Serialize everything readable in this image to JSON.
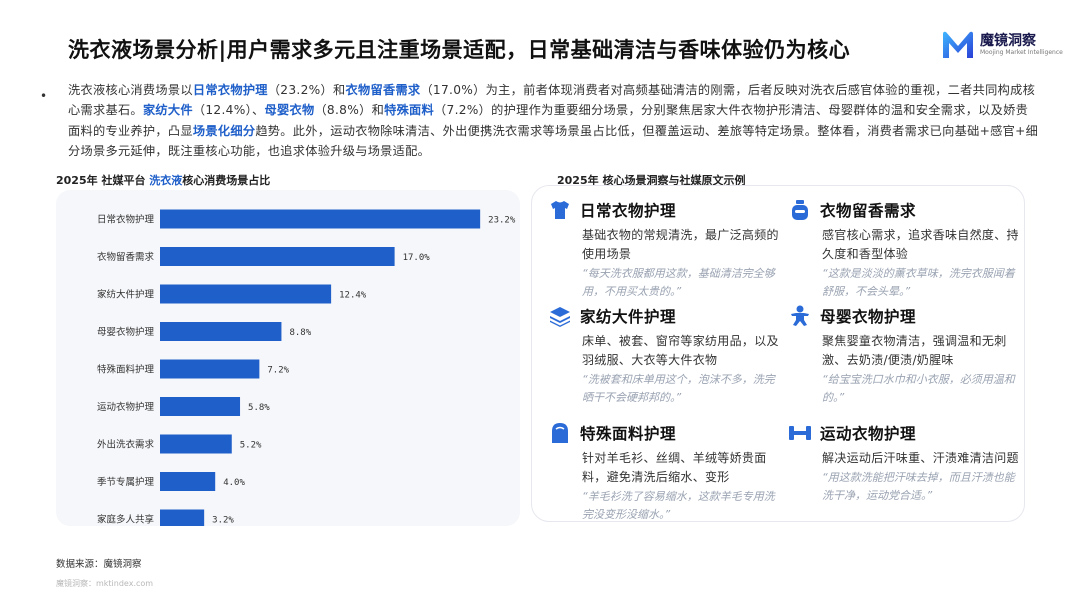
{
  "header": {
    "title": "洗衣液场景分析|用户需求多元且注重场景适配，日常基础清洁与香味体验仍为核心",
    "logo_cn": "魔镜洞察",
    "logo_en": "Moojing Market Intelligence"
  },
  "intro": {
    "bullet": "•",
    "parts": [
      {
        "t": "洗衣液核心消费场景以",
        "hl": false
      },
      {
        "t": "日常衣物护理",
        "hl": true
      },
      {
        "t": "（23.2%）和",
        "hl": false
      },
      {
        "t": "衣物留香需求",
        "hl": true
      },
      {
        "t": "（17.0%）为主，前者体现消费者对高频基础清洁的刚需，后者反映对洗衣后感官体验的重视，二者共同构成核心需求基石。",
        "hl": false
      },
      {
        "t": "家纺大件",
        "hl": true
      },
      {
        "t": "（12.4%）、",
        "hl": false
      },
      {
        "t": "母婴衣物",
        "hl": true
      },
      {
        "t": "（8.8%）和",
        "hl": false
      },
      {
        "t": "特殊面料",
        "hl": true
      },
      {
        "t": "（7.2%）的护理作为重要细分场景，分别聚焦居家大件衣物护形清洁、母婴群体的温和安全需求，以及娇贵面料的专业养护，凸显",
        "hl": false
      },
      {
        "t": "场景化细分",
        "hl": true
      },
      {
        "t": "趋势。此外，运动衣物除味清洁、外出便携洗衣需求等场景虽占比低，但覆盖运动、差旅等特定场景。整体看，消费者需求已向基础+感官+细分场景多元延伸，既注重核心功能，也追求体验升级与场景适配。",
        "hl": false
      }
    ]
  },
  "chart_title": {
    "prefix": "2025年 社媒平台 ",
    "highlight": "洗衣液",
    "suffix": "核心消费场景占比"
  },
  "chart_data": {
    "type": "bar",
    "orientation": "horizontal",
    "categories": [
      "日常衣物护理",
      "衣物留香需求",
      "家纺大件护理",
      "母婴衣物护理",
      "特殊面料护理",
      "运动衣物护理",
      "外出洗衣需求",
      "季节专属护理",
      "家庭多人共享"
    ],
    "values": [
      23.2,
      17.0,
      12.4,
      8.8,
      7.2,
      5.8,
      5.2,
      4.0,
      3.2
    ],
    "value_labels": [
      "23.2%",
      "17.0%",
      "12.4%",
      "8.8%",
      "7.2%",
      "5.8%",
      "5.2%",
      "4.0%",
      "3.2%"
    ],
    "xlim": [
      0,
      25
    ],
    "bar_color": "#1f5fc9",
    "grid": false,
    "legend": "none"
  },
  "cards_title": "2025年 核心场景洞察与社媒原文示例",
  "cards": [
    {
      "icon": "shirt-icon",
      "name": "日常衣物护理",
      "desc": "基础衣物的常规清洗，最广泛高频的使用场景",
      "quote": "“每天洗衣服都用这款，基础清洁完全够用，不用买太贵的。”"
    },
    {
      "icon": "fragrance-icon",
      "name": "衣物留香需求",
      "desc": "感官核心需求，追求香味自然度、持久度和香型体验",
      "quote": "“这款是淡淡的薰衣草味，洗完衣服闻着舒服，不会头晕。”"
    },
    {
      "icon": "stack-icon",
      "name": "家纺大件护理",
      "desc": "床单、被套、窗帘等家纺用品，以及羽绒服、大衣等大件衣物",
      "quote": "“洗被套和床单用这个，泡沫不多，洗完晒干不会硬邦邦的。”"
    },
    {
      "icon": "baby-icon",
      "name": "母婴衣物护理",
      "desc": "聚焦婴童衣物清洁，强调温和无刺激、去奶渍/便渍/奶腥味",
      "quote": "“给宝宝洗口水巾和小衣服，必须用温和的。”"
    },
    {
      "icon": "fabric-icon",
      "name": "特殊面料护理",
      "desc": "针对羊毛衫、丝绸、羊绒等娇贵面料，避免清洗后缩水、变形",
      "quote": "“羊毛衫洗了容易缩水，这款羊毛专用洗完没变形没缩水。”"
    },
    {
      "icon": "dumbbell-icon",
      "name": "运动衣物护理",
      "desc": "解决运动后汗味重、汗渍难清洁问题",
      "quote": "“用这款洗能把汗味去掉，而且汗渍也能洗干净，运动党合适。”"
    }
  ],
  "footer": {
    "source": "数据来源：魔镜洞察",
    "watermark": "魔镜洞察：mktindex.com"
  }
}
